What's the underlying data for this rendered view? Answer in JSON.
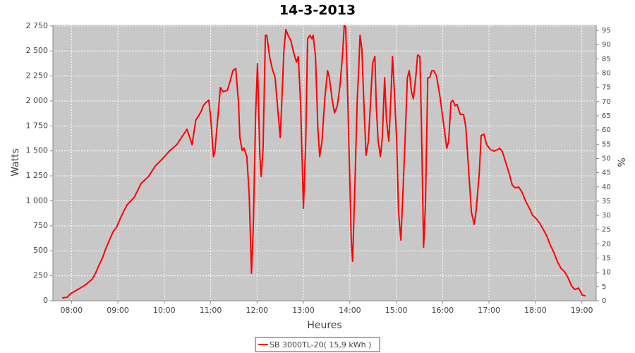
{
  "chart_data": {
    "type": "line",
    "title": "14-3-2013",
    "x_label": "Heures",
    "y_label": "Watts",
    "y2_label": "%",
    "x": [
      7.8,
      7.91,
      7.98,
      8.14,
      8.29,
      8.44,
      8.52,
      8.59,
      8.67,
      8.74,
      8.82,
      8.9,
      8.97,
      9.05,
      9.12,
      9.2,
      9.35,
      9.5,
      9.66,
      9.81,
      9.96,
      10.11,
      10.27,
      10.42,
      10.49,
      10.54,
      10.6,
      10.68,
      10.75,
      10.8,
      10.84,
      10.9,
      10.96,
      11.0,
      11.06,
      11.09,
      11.15,
      11.21,
      11.27,
      11.36,
      11.42,
      11.48,
      11.54,
      11.6,
      11.63,
      11.68,
      11.72,
      11.78,
      11.83,
      11.88,
      11.92,
      11.97,
      12.01,
      12.06,
      12.09,
      12.13,
      12.18,
      12.21,
      12.27,
      12.33,
      12.39,
      12.44,
      12.5,
      12.53,
      12.58,
      12.62,
      12.67,
      12.73,
      12.79,
      12.85,
      12.89,
      12.94,
      13.0,
      13.05,
      13.09,
      13.14,
      13.18,
      13.21,
      13.26,
      13.31,
      13.35,
      13.4,
      13.46,
      13.52,
      13.56,
      13.62,
      13.67,
      13.73,
      13.79,
      13.84,
      13.88,
      13.91,
      13.94,
      13.99,
      14.03,
      14.06,
      14.11,
      14.16,
      14.19,
      14.22,
      14.26,
      14.31,
      14.35,
      14.4,
      14.45,
      14.49,
      14.54,
      14.57,
      14.61,
      14.66,
      14.7,
      14.75,
      14.79,
      14.84,
      14.87,
      14.92,
      14.96,
      15.01,
      15.05,
      15.1,
      15.14,
      15.19,
      15.24,
      15.28,
      15.33,
      15.37,
      15.42,
      15.46,
      15.51,
      15.54,
      15.59,
      15.63,
      15.68,
      15.72,
      15.77,
      15.81,
      15.87,
      15.95,
      16.01,
      16.09,
      16.13,
      16.18,
      16.22,
      16.27,
      16.31,
      16.38,
      16.45,
      16.5,
      16.56,
      16.62,
      16.68,
      16.72,
      16.79,
      16.83,
      16.89,
      16.95,
      17.03,
      17.11,
      17.18,
      17.23,
      17.29,
      17.36,
      17.44,
      17.5,
      17.56,
      17.64,
      17.71,
      17.79,
      17.87,
      17.94,
      18.02,
      18.09,
      18.17,
      18.25,
      18.32,
      18.4,
      18.47,
      18.55,
      18.63,
      18.7,
      18.78,
      18.85,
      18.93,
      19.01,
      19.08
    ],
    "series": [
      {
        "name": "SB 3000TL-20( 15,9 kWh )",
        "color": "#ff0000",
        "values": [
          28,
          35,
          71,
          113,
          155,
          212,
          276,
          353,
          431,
          523,
          608,
          693,
          735,
          820,
          890,
          961,
          1032,
          1173,
          1244,
          1350,
          1420,
          1498,
          1562,
          1668,
          1717,
          1647,
          1562,
          1809,
          1859,
          1901,
          1951,
          1986,
          2007,
          1844,
          1442,
          1491,
          1809,
          2134,
          2092,
          2106,
          2198,
          2304,
          2325,
          1986,
          1633,
          1505,
          1527,
          1442,
          1067,
          276,
          749,
          1880,
          2374,
          1456,
          1244,
          1527,
          2657,
          2657,
          2445,
          2318,
          2233,
          1951,
          1633,
          1951,
          2516,
          2714,
          2657,
          2601,
          2481,
          2389,
          2445,
          1951,
          926,
          1597,
          2622,
          2657,
          2622,
          2657,
          2445,
          1739,
          1442,
          1597,
          2021,
          2304,
          2233,
          2007,
          1880,
          1951,
          2163,
          2445,
          2756,
          2740,
          2304,
          1385,
          608,
          396,
          1173,
          2021,
          2304,
          2657,
          2516,
          1880,
          1456,
          1597,
          2021,
          2374,
          2445,
          1951,
          1597,
          1442,
          1633,
          2233,
          1809,
          1597,
          1880,
          2445,
          2092,
          1597,
          890,
          608,
          1032,
          1597,
          2233,
          2304,
          2092,
          2021,
          2233,
          2459,
          2445,
          1844,
          537,
          961,
          2233,
          2233,
          2304,
          2304,
          2247,
          2021,
          1809,
          1527,
          1597,
          1986,
          2007,
          1951,
          1965,
          1866,
          1866,
          1739,
          1314,
          890,
          763,
          890,
          1279,
          1654,
          1668,
          1562,
          1512,
          1498,
          1512,
          1527,
          1491,
          1385,
          1265,
          1159,
          1131,
          1138,
          1088,
          996,
          926,
          855,
          820,
          777,
          714,
          643,
          558,
          481,
          396,
          325,
          290,
          233,
          148,
          113,
          127,
          57,
          49
        ]
      }
    ],
    "xlim": [
      7.6,
      19.31
    ],
    "xticks": [
      {
        "value": 8,
        "label": "08:00"
      },
      {
        "value": 9,
        "label": "09:00"
      },
      {
        "value": 10,
        "label": "10:00"
      },
      {
        "value": 11,
        "label": "11:00"
      },
      {
        "value": 12,
        "label": "12:00"
      },
      {
        "value": 13,
        "label": "13:00"
      },
      {
        "value": 14,
        "label": "14:00"
      },
      {
        "value": 15,
        "label": "15:00"
      },
      {
        "value": 16,
        "label": "16:00"
      },
      {
        "value": 17,
        "label": "17:00"
      },
      {
        "value": 18,
        "label": "18:00"
      },
      {
        "value": 19,
        "label": "19:00"
      }
    ],
    "ylim": [
      0,
      2763
    ],
    "yticks": [
      0,
      250,
      500,
      750,
      {
        "value": 1000,
        "label": "1 000"
      },
      {
        "value": 1250,
        "label": "1 250"
      },
      {
        "value": 1500,
        "label": "1 500"
      },
      {
        "value": 1750,
        "label": "1 750"
      },
      {
        "value": 2000,
        "label": "2 000"
      },
      {
        "value": 2250,
        "label": "2 250"
      },
      {
        "value": 2500,
        "label": "2 500"
      },
      {
        "value": 2750,
        "label": "2 750"
      }
    ],
    "y2lim": [
      0,
      97
    ],
    "y2ticks": [
      0,
      5,
      10,
      15,
      20,
      25,
      30,
      35,
      40,
      45,
      50,
      55,
      60,
      65,
      70,
      75,
      80,
      85,
      90,
      95
    ],
    "grid": true
  }
}
